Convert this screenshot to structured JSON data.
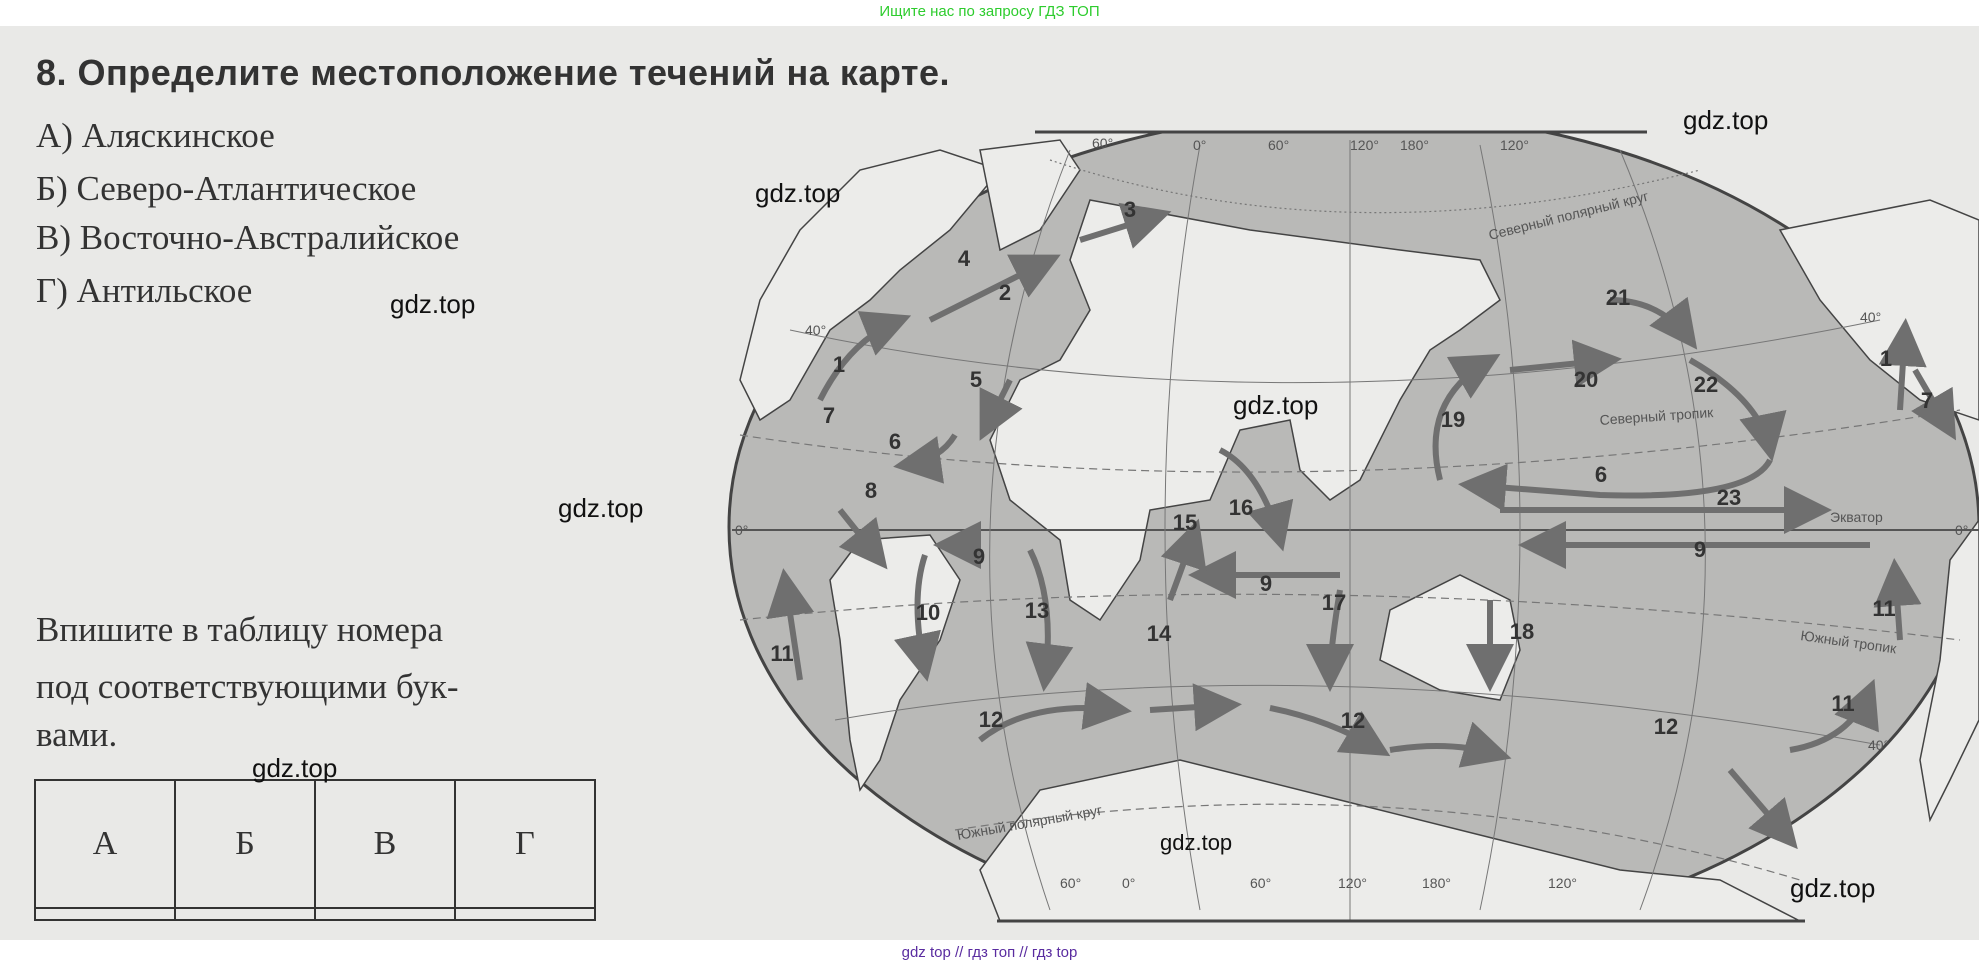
{
  "top_banner": "Ищите нас по запросу ГДЗ ТОП",
  "bottom_banner": "gdz top  //  гдз топ  //  гдз top",
  "task": {
    "title": "8.  Определите местоположение течений на карте.",
    "items": [
      "А)  Аляскинское",
      "Б)  Северо-Атлантическое",
      "В)  Восточно-Австралийское",
      "Г)  Антильское"
    ],
    "instruction_lines": [
      "Впишите в таблицу номера",
      "под соответствующими бук-",
      "вами."
    ],
    "table_headers": [
      "А",
      "Б",
      "В",
      "Г"
    ],
    "table_answers": [
      "",
      "",
      "",
      ""
    ]
  },
  "watermark": "gdz.top",
  "map": {
    "current_numbers": [
      "1",
      "2",
      "3",
      "4",
      "5",
      "6",
      "7",
      "8",
      "9",
      "10",
      "11",
      "12",
      "13",
      "14",
      "15",
      "16",
      "17",
      "9",
      "12",
      "18",
      "19",
      "20",
      "21",
      "22",
      "6",
      "23",
      "9",
      "11",
      "12",
      "11",
      "1",
      "7"
    ],
    "line_labels": {
      "arctic_circle": "Северный полярный круг",
      "tropic_cancer": "Северный тропик",
      "equator": "Экватор",
      "tropic_capricorn": "Южный тропик",
      "antarctic_circle": "Южный полярный круг"
    },
    "top_degrees": [
      "60°",
      "0°",
      "60°",
      "120°",
      "180°",
      "120°"
    ],
    "bottom_degrees": [
      "60°",
      "0°",
      "60°",
      "120°",
      "180°",
      "120°"
    ],
    "side_degrees": [
      "40°",
      "0°",
      "40°",
      "0°",
      "40°"
    ],
    "colors": {
      "ocean": "#b9b9b7",
      "land": "#ececea",
      "arrow": "#6f6f6f"
    }
  }
}
